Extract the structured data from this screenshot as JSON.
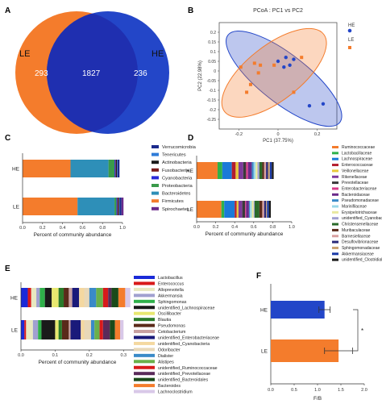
{
  "colors": {
    "le": "#f47c2c",
    "he": "#2346c8",
    "overlap": "#1f2fb0"
  },
  "panels": {
    "a": "A",
    "b": "B",
    "c": "C",
    "d": "D",
    "e": "E",
    "f": "F"
  },
  "chart_data": [
    {
      "panel": "A",
      "type": "venn",
      "sets": [
        {
          "name": "LE",
          "unique": 293
        },
        {
          "name": "HE",
          "unique": 236
        }
      ],
      "overlap": 1827
    },
    {
      "panel": "B",
      "type": "scatter",
      "title": "PCoA : PC1 vs PC2",
      "xlabel": "PC1 (37.75%)",
      "ylabel": "PC2 (22.98%)",
      "xlim": [
        -0.3,
        0.3
      ],
      "ylim": [
        -0.3,
        0.25
      ],
      "xticks": [
        "-0.2",
        "0",
        "0.2"
      ],
      "yticks": [
        "0.2",
        "0.15",
        "0.1",
        "0.05",
        "0",
        "-0.05",
        "-0.1",
        "-0.15",
        "-0.2",
        "-0.25"
      ],
      "legend": [
        "HE",
        "LE"
      ],
      "legend_position": "top-right",
      "series": [
        {
          "name": "HE",
          "marker": "circle",
          "points": [
            [
              0.04,
              0.07
            ],
            [
              0.08,
              0.06
            ],
            [
              0.0,
              0.05
            ],
            [
              0.06,
              0.03
            ],
            [
              0.03,
              0.02
            ],
            [
              0.16,
              -0.18
            ],
            [
              0.23,
              -0.17
            ]
          ]
        },
        {
          "name": "LE",
          "marker": "square",
          "points": [
            [
              -0.19,
              0.02
            ],
            [
              -0.12,
              0.04
            ],
            [
              -0.09,
              0.03
            ],
            [
              -0.1,
              -0.01
            ],
            [
              -0.02,
              0.03
            ],
            [
              0.12,
              0.07
            ],
            [
              -0.14,
              -0.07
            ],
            [
              -0.16,
              -0.11
            ],
            [
              0.08,
              -0.11
            ]
          ]
        }
      ]
    },
    {
      "panel": "C",
      "type": "bar",
      "orientation": "horizontal",
      "stacked": true,
      "categories": [
        "HE",
        "LE"
      ],
      "xlabel": "Percent of community abundance",
      "xticks": [
        "0.0",
        "0.2",
        "0.4",
        "0.6",
        "0.8",
        "1.0"
      ],
      "xlim": [
        0,
        1.0
      ],
      "legend": [
        "Verrucomicrobia",
        "Tenericutes",
        "Actinobacteria",
        "Fusobacteria",
        "Cyanobacteria",
        "Proteobacteria",
        "Bacteroidetes",
        "Firmicutes",
        "Spirochaetes"
      ],
      "legend_colors": [
        "#1b2a8c",
        "#2f7cd8",
        "#1a1a1a",
        "#7a1b1b",
        "#2a2ad8",
        "#3a9a4a",
        "#2e8fb8",
        "#f47c2c",
        "#6a2a8a"
      ],
      "series": [
        {
          "name": "Firmicutes",
          "values": [
            0.48,
            0.55
          ]
        },
        {
          "name": "Bacteroidetes",
          "values": [
            0.38,
            0.37
          ]
        },
        {
          "name": "Proteobacteria",
          "values": [
            0.06,
            0.02
          ]
        },
        {
          "name": "Cyanobacteria",
          "values": [
            0.01,
            0.01
          ]
        },
        {
          "name": "Fusobacteria",
          "values": [
            0.005,
            0.01
          ]
        },
        {
          "name": "Actinobacteria",
          "values": [
            0.01,
            0.005
          ]
        },
        {
          "name": "Tenericutes",
          "values": [
            0.005,
            0.005
          ]
        },
        {
          "name": "Verrucomicrobia",
          "values": [
            0.02,
            0.02
          ]
        },
        {
          "name": "Spirochaetes",
          "values": [
            0.0,
            0.02
          ]
        }
      ]
    },
    {
      "panel": "D",
      "type": "bar",
      "orientation": "horizontal",
      "stacked": true,
      "categories": [
        "HE",
        "LE"
      ],
      "xlabel": "Percent of community abundance",
      "xticks": [
        "0.0",
        "0.2",
        "0.4",
        "0.6",
        "0.8",
        "1.0"
      ],
      "xlim": [
        0,
        1.0
      ],
      "legend": [
        "Ruminococcaceae",
        "Lactobacillaceae",
        "Lachnospiraceae",
        "Enterococcaceae",
        "Veillonellaceae",
        "Rikenellaceae",
        "Prevotellaceae",
        "Enterobacteriaceae",
        "Bacteroidaceae",
        "Pseudomonadaceae",
        "Marinifilaceae",
        "Erysipelotrichaceae",
        "unidentified_Cyanobacteria",
        "Christensenellaceae",
        "Muribaculaceae",
        "Barnesiellaceae",
        "Desulfovibrionaceae",
        "Sphingomonadaceae",
        "Akkermansiaceae",
        "unidentified_Clostridiales"
      ],
      "legend_colors": [
        "#f47c2c",
        "#2fb14a",
        "#1b7ad8",
        "#b31e2e",
        "#e8c83a",
        "#7e3a9c",
        "#3a3a3a",
        "#d83a8a",
        "#6a2a8a",
        "#3a8ac8",
        "#9ad8e8",
        "#e8e8a0",
        "#a0a0d0",
        "#2a6a2a",
        "#5a2a1a",
        "#d8a0a0",
        "#2a2a7a",
        "#c8a070",
        "#1a3aa8",
        "#1a1a1a"
      ],
      "series": [
        {
          "name": "Ruminococcaceae",
          "values": [
            0.22,
            0.26
          ]
        },
        {
          "name": "Lactobacillaceae",
          "values": [
            0.05,
            0.03
          ]
        },
        {
          "name": "Lachnospiraceae",
          "values": [
            0.1,
            0.11
          ]
        },
        {
          "name": "Enterococcaceae",
          "values": [
            0.04,
            0.02
          ]
        },
        {
          "name": "Veillonellaceae",
          "values": [
            0.03,
            0.02
          ]
        },
        {
          "name": "Rikenellaceae",
          "values": [
            0.05,
            0.04
          ]
        },
        {
          "name": "Prevotellaceae",
          "values": [
            0.03,
            0.03
          ]
        },
        {
          "name": "Enterobacteriaceae",
          "values": [
            0.02,
            0.01
          ]
        },
        {
          "name": "Bacteroidaceae",
          "values": [
            0.04,
            0.03
          ]
        },
        {
          "name": "Pseudomonadaceae",
          "values": [
            0.02,
            0.01
          ]
        },
        {
          "name": "Marinifilaceae",
          "values": [
            0.02,
            0.02
          ]
        },
        {
          "name": "Erysipelotrichaceae",
          "values": [
            0.02,
            0.02
          ]
        },
        {
          "name": "unidentified_Cyanobacteria",
          "values": [
            0.02,
            0.01
          ]
        },
        {
          "name": "Christensenellaceae",
          "values": [
            0.03,
            0.05
          ]
        },
        {
          "name": "Muribaculaceae",
          "values": [
            0.02,
            0.03
          ]
        },
        {
          "name": "Barnesiellaceae",
          "values": [
            0.02,
            0.02
          ]
        },
        {
          "name": "Desulfovibrionaceae",
          "values": [
            0.02,
            0.02
          ]
        },
        {
          "name": "Sphingomonadaceae",
          "values": [
            0.02,
            0.01
          ]
        },
        {
          "name": "Akkermansiaceae",
          "values": [
            0.02,
            0.02
          ]
        },
        {
          "name": "unidentified_Clostridiales",
          "values": [
            0.02,
            0.02
          ]
        }
      ]
    },
    {
      "panel": "E",
      "type": "bar",
      "orientation": "horizontal",
      "stacked": true,
      "categories": [
        "HE",
        "LE"
      ],
      "xlabel": "Percent of community abundance",
      "xticks": [
        "0.0",
        "0.1",
        "0.2",
        "0.3"
      ],
      "xlim": [
        0,
        0.33
      ],
      "legend": [
        "Lactobacillus",
        "Enterococcus",
        "Alloprevotella",
        "Akkermansia",
        "Sphingomonas",
        "unidentified_Lachnospiraceae",
        "Oscillibacter",
        "Blautia",
        "Pseudomonas",
        "Cetobacterium",
        "unidentified_Enterobacteriaceae",
        "unidentified_Cyanobacteria",
        "Odoribacter",
        "Dialister",
        "Alistipes",
        "unidentified_Ruminococcaceae",
        "unidentified_Prevotellaceae",
        "unidentified_Bacteroidales",
        "Bacteroides",
        "Lachnoclostridium"
      ],
      "legend_colors": [
        "#1a2ad8",
        "#d81a1a",
        "#e8e8c0",
        "#a0a0d0",
        "#2fb14a",
        "#1a1a1a",
        "#e8e870",
        "#2a7a2a",
        "#5a2a1a",
        "#c8a0a0",
        "#1a1a7a",
        "#f4d8a0",
        "#e8d8b8",
        "#3a8ac8",
        "#6ab04a",
        "#d81a1a",
        "#5a2a5a",
        "#1a4a1a",
        "#f47c2c",
        "#d8c8e8"
      ],
      "series": [
        {
          "name": "Lactobacillus",
          "values": [
            0.02,
            0.01
          ]
        },
        {
          "name": "Enterococcus",
          "values": [
            0.01,
            0.005
          ]
        },
        {
          "name": "Alloprevotella",
          "values": [
            0.015,
            0.02
          ]
        },
        {
          "name": "Akkermansia",
          "values": [
            0.01,
            0.015
          ]
        },
        {
          "name": "Sphingomonas",
          "values": [
            0.015,
            0.01
          ]
        },
        {
          "name": "unidentified_Lachnospiraceae",
          "values": [
            0.02,
            0.04
          ]
        },
        {
          "name": "Oscillibacter",
          "values": [
            0.02,
            0.01
          ]
        },
        {
          "name": "Blautia",
          "values": [
            0.015,
            0.01
          ]
        },
        {
          "name": "Pseudomonas",
          "values": [
            0.015,
            0.02
          ]
        },
        {
          "name": "Cetobacterium",
          "values": [
            0.01,
            0.005
          ]
        },
        {
          "name": "unidentified_Enterobacteriaceae",
          "values": [
            0.02,
            0.03
          ]
        },
        {
          "name": "unidentified_Cyanobacteria",
          "values": [
            0.015,
            0.01
          ]
        },
        {
          "name": "Odoribacter",
          "values": [
            0.015,
            0.02
          ]
        },
        {
          "name": "Dialister",
          "values": [
            0.02,
            0.01
          ]
        },
        {
          "name": "Alistipes",
          "values": [
            0.02,
            0.015
          ]
        },
        {
          "name": "unidentified_Ruminococcaceae",
          "values": [
            0.015,
            0.01
          ]
        },
        {
          "name": "unidentified_Prevotellaceae",
          "values": [
            0.01,
            0.02
          ]
        },
        {
          "name": "unidentified_Bacteroidales",
          "values": [
            0.02,
            0.015
          ]
        },
        {
          "name": "Bacteroides",
          "values": [
            0.02,
            0.015
          ]
        },
        {
          "name": "Lachnoclostridium",
          "values": [
            0.015,
            0.01
          ]
        }
      ]
    },
    {
      "panel": "F",
      "type": "bar",
      "orientation": "horizontal",
      "categories": [
        "HE",
        "LE"
      ],
      "values": [
        1.15,
        1.45
      ],
      "errors": [
        0.12,
        0.3
      ],
      "xlabel": "F/B",
      "xticks": [
        "0.0",
        "0.5",
        "1.0",
        "1.5",
        "2.0"
      ],
      "xlim": [
        0,
        2.0
      ],
      "significance": "*"
    }
  ]
}
